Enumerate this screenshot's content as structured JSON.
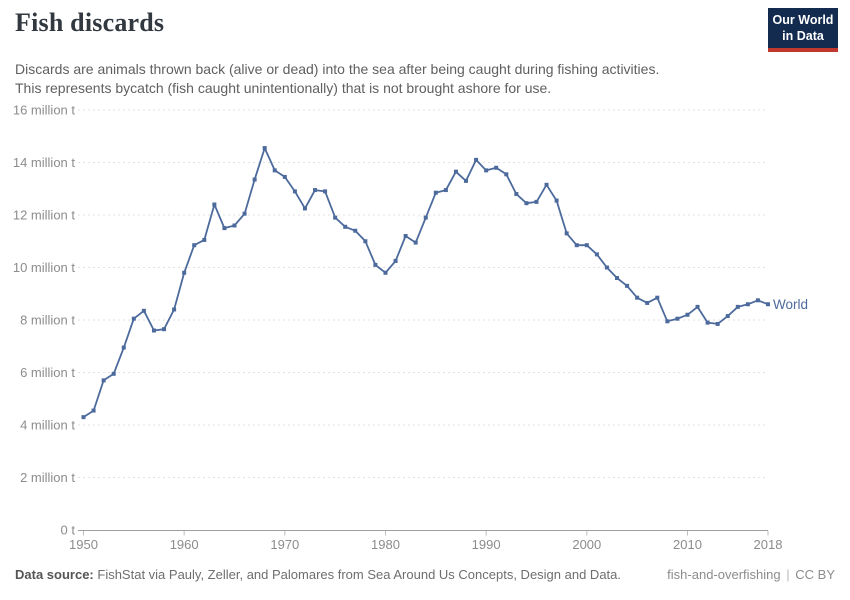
{
  "header": {
    "title": "Fish discards",
    "subtitle_line1": "Discards are animals thrown back (alive or dead) into the sea after being caught during fishing activities.",
    "subtitle_line2": "This represents bycatch (fish caught unintentionally) that is not brought ashore for use.",
    "logo": {
      "line1": "Our World",
      "line2": "in Data"
    }
  },
  "chart_data": {
    "type": "line",
    "title": "Fish discards",
    "unit": "million t",
    "grid": "dashed-horizontal",
    "legend": "end-of-line-label",
    "xlim": [
      1950,
      2018
    ],
    "ylim": [
      0,
      16
    ],
    "x_ticks": [
      1950,
      1960,
      1970,
      1980,
      1990,
      2000,
      2010,
      2018
    ],
    "y_ticks": [
      0,
      2,
      4,
      6,
      8,
      10,
      12,
      14,
      16
    ],
    "y_tick_labels": [
      "0 t",
      "2 million t",
      "4 million t",
      "6 million t",
      "8 million t",
      "10 million t",
      "12 million t",
      "14 million t",
      "16 million t"
    ],
    "series": [
      {
        "name": "World",
        "color": "#4c6a9c",
        "x_start_year": 1950,
        "years": [
          1950,
          1951,
          1952,
          1953,
          1954,
          1955,
          1956,
          1957,
          1958,
          1959,
          1960,
          1961,
          1962,
          1963,
          1964,
          1965,
          1966,
          1967,
          1968,
          1969,
          1970,
          1971,
          1972,
          1973,
          1974,
          1975,
          1976,
          1977,
          1978,
          1979,
          1980,
          1981,
          1982,
          1983,
          1984,
          1985,
          1986,
          1987,
          1988,
          1989,
          1990,
          1991,
          1992,
          1993,
          1994,
          1995,
          1996,
          1997,
          1998,
          1999,
          2000,
          2001,
          2002,
          2003,
          2004,
          2005,
          2006,
          2007,
          2008,
          2009,
          2010,
          2011,
          2012,
          2013,
          2014,
          2015,
          2016,
          2017,
          2018
        ],
        "values": [
          4.3,
          4.55,
          5.7,
          5.95,
          6.95,
          8.05,
          8.35,
          7.6,
          7.65,
          8.4,
          9.8,
          10.85,
          11.05,
          12.4,
          11.5,
          11.6,
          12.05,
          13.35,
          14.55,
          13.7,
          13.45,
          12.9,
          12.25,
          12.95,
          12.9,
          11.9,
          11.55,
          11.4,
          11.0,
          10.1,
          9.8,
          10.25,
          11.2,
          10.95,
          11.9,
          12.85,
          12.95,
          13.65,
          13.3,
          14.1,
          13.7,
          13.8,
          13.55,
          12.8,
          12.45,
          12.5,
          13.15,
          12.55,
          11.3,
          10.85,
          10.85,
          10.5,
          10.0,
          9.6,
          9.3,
          8.85,
          8.65,
          8.85,
          7.95,
          8.05,
          8.2,
          8.5,
          7.9,
          7.85,
          8.15,
          8.5,
          8.6,
          8.75,
          8.6
        ]
      }
    ]
  },
  "footer": {
    "source_label": "Data source:",
    "source_text": "FishStat via Pauly, Zeller, and Palomares from Sea Around Us Concepts, Design and Data.",
    "slug": "fish-and-overfishing",
    "separator": "|",
    "license": "CC BY"
  },
  "colors": {
    "accent": "#4c6a9c",
    "grid": "#e2e2e2",
    "axis": "#9e9e9e",
    "tick_text": "#8c8c8c",
    "logo_bg": "#122b4e",
    "logo_bar": "#c0372d"
  }
}
